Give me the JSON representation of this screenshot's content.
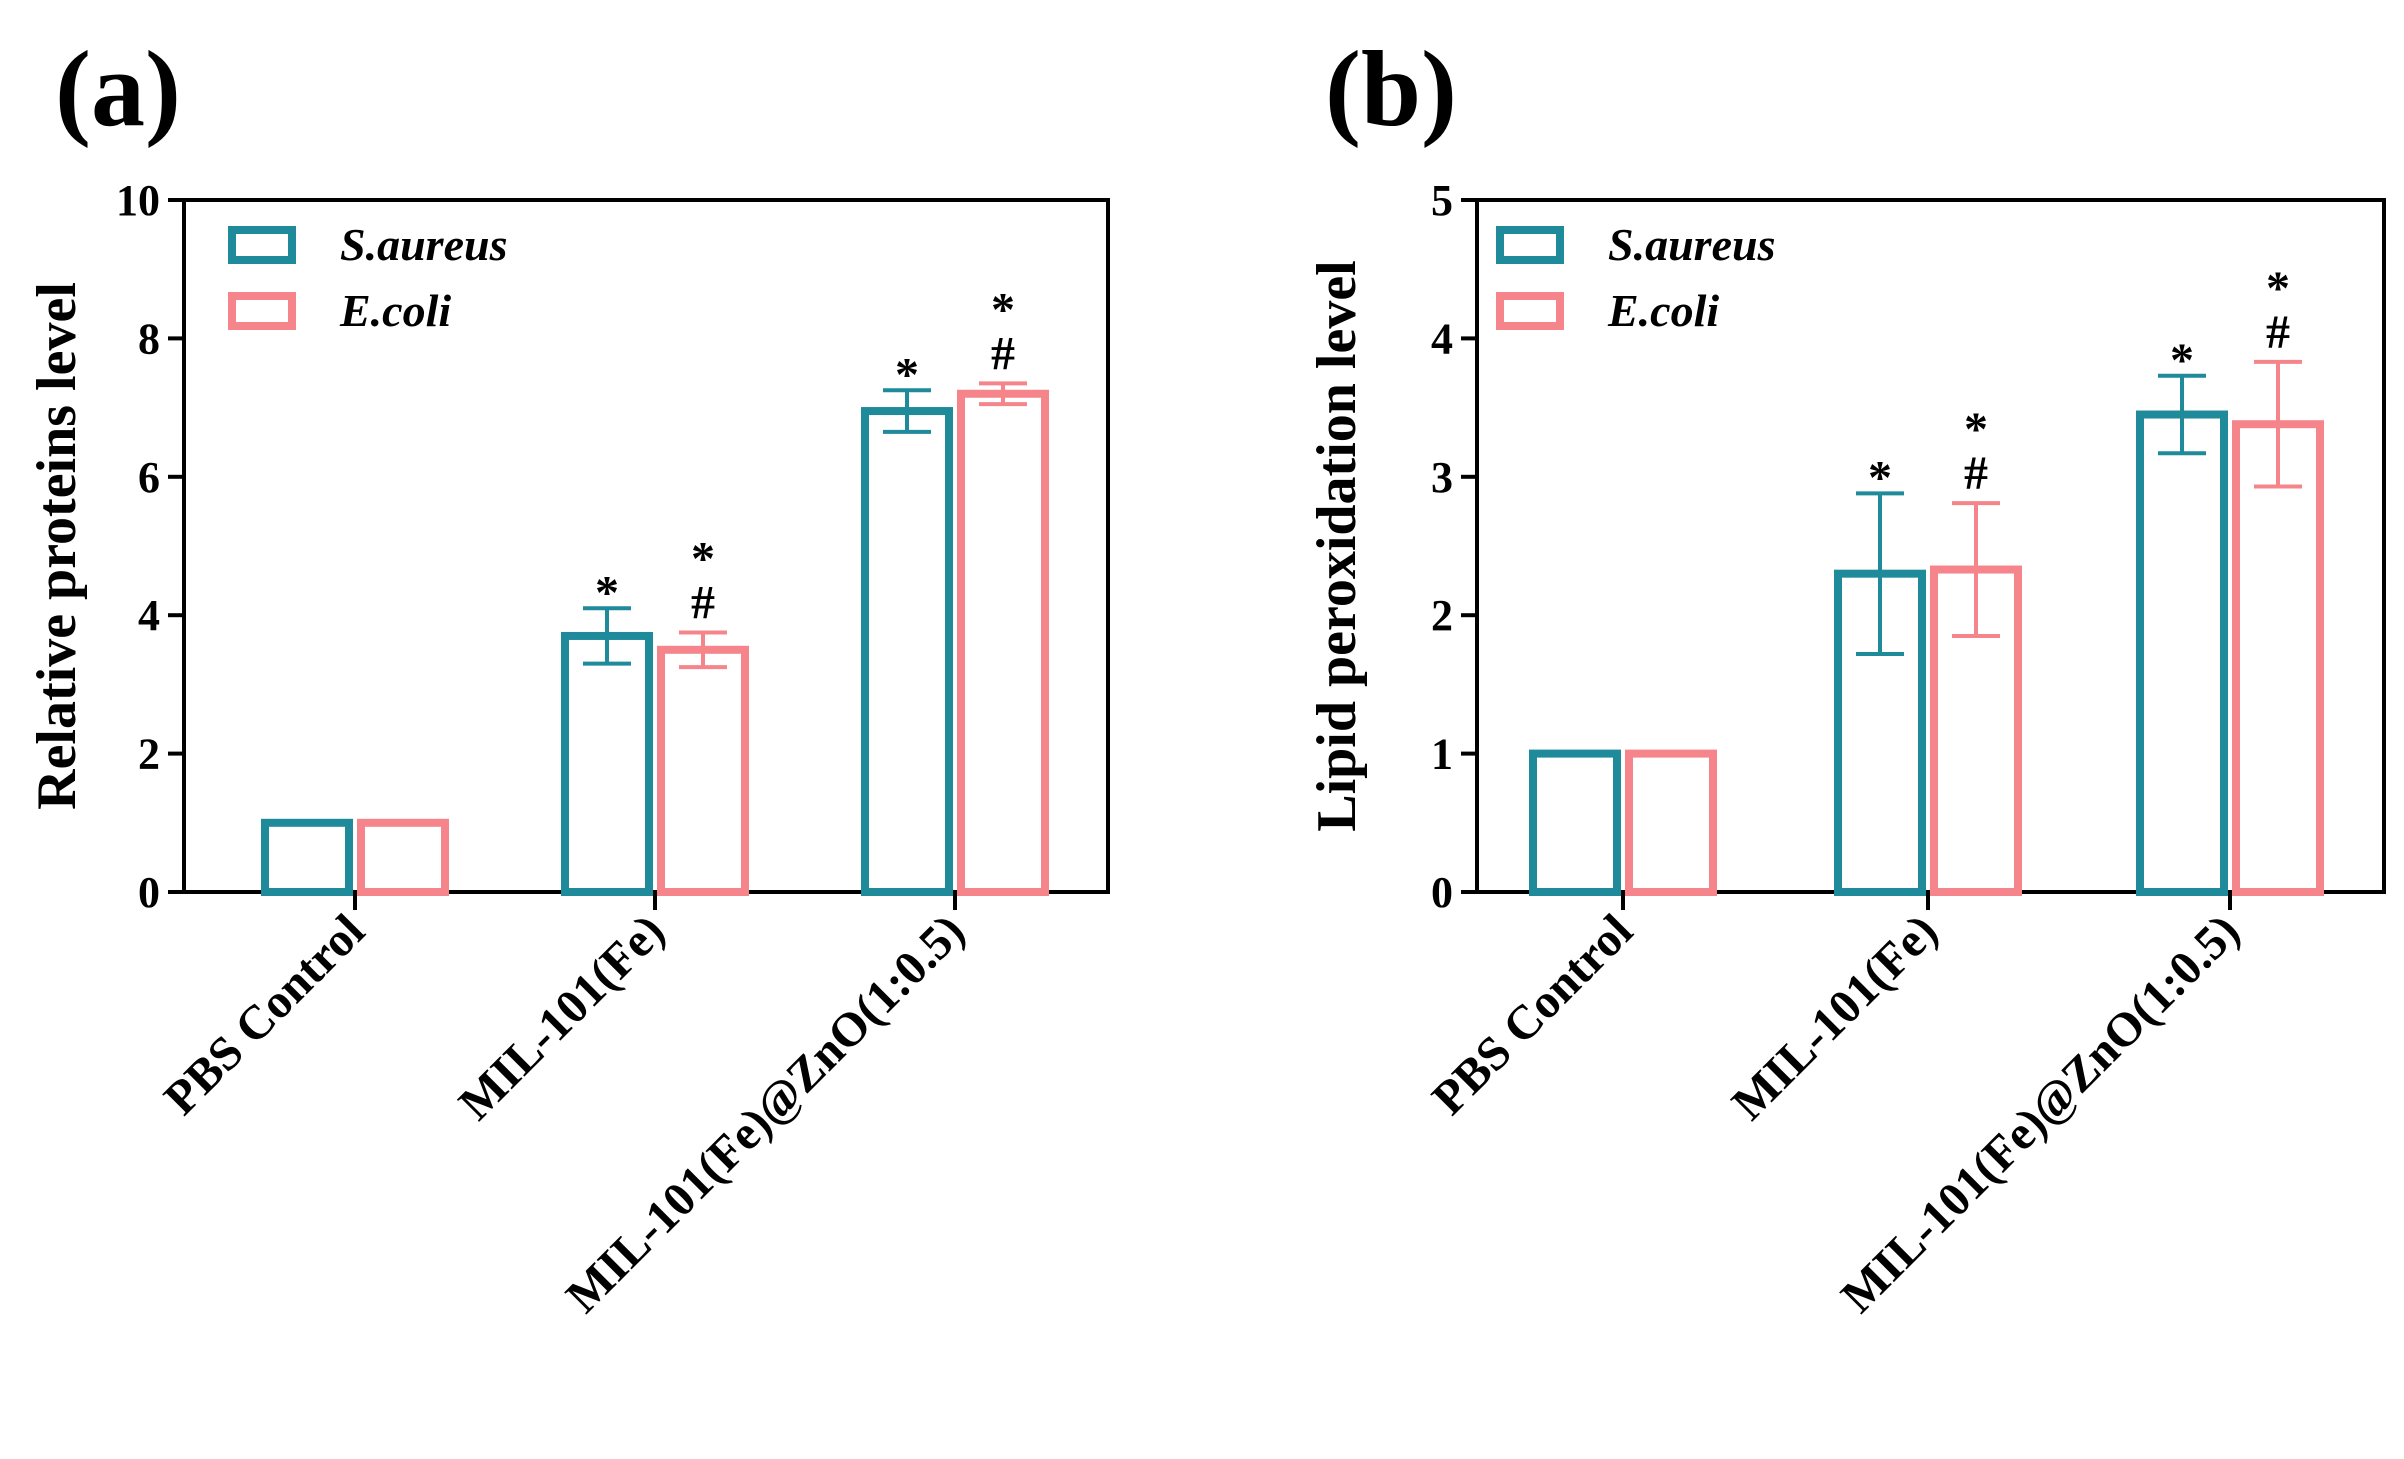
{
  "colors": {
    "series_1": "#1e8a9a",
    "series_2": "#f5858a",
    "axis": "#000000"
  },
  "chart_data": [
    {
      "type": "bar",
      "panel_label": "(a)",
      "title": "",
      "xlabel": "",
      "ylabel": "Relative proteins level",
      "ylim": [
        0,
        10
      ],
      "yticks": [
        0,
        2,
        4,
        6,
        8,
        10
      ],
      "categories": [
        "PBS Control",
        "MIL-101(Fe)",
        "MIL-101(Fe)@ZnO(1:0.5)"
      ],
      "series": [
        {
          "name": "S.aureus",
          "values": [
            1.0,
            3.7,
            6.95
          ],
          "errors": [
            0,
            0.4,
            0.3
          ],
          "marks": [
            "",
            "*",
            "*"
          ]
        },
        {
          "name": "E.coli",
          "values": [
            1.0,
            3.5,
            7.2
          ],
          "errors": [
            0,
            0.25,
            0.15
          ],
          "marks": [
            "",
            "*\n#",
            "*\n#"
          ]
        }
      ],
      "legend": "top-left",
      "grid": false
    },
    {
      "type": "bar",
      "panel_label": "(b)",
      "title": "",
      "xlabel": "",
      "ylabel": "Lipid peroxidation level",
      "ylim": [
        0,
        5
      ],
      "yticks": [
        0,
        1,
        2,
        3,
        4,
        5
      ],
      "categories": [
        "PBS Control",
        "MIL-101(Fe)",
        "MIL-101(Fe)@ZnO(1:0.5)"
      ],
      "series": [
        {
          "name": "S.aureus",
          "values": [
            1.0,
            2.3,
            3.45
          ],
          "errors": [
            0,
            0.58,
            0.28
          ],
          "marks": [
            "",
            "*",
            "*"
          ]
        },
        {
          "name": "E.coli",
          "values": [
            1.0,
            2.33,
            3.38
          ],
          "errors": [
            0,
            0.48,
            0.45
          ],
          "marks": [
            "",
            "*\n#",
            "*\n#"
          ]
        }
      ],
      "legend": "top-left",
      "grid": false
    }
  ]
}
